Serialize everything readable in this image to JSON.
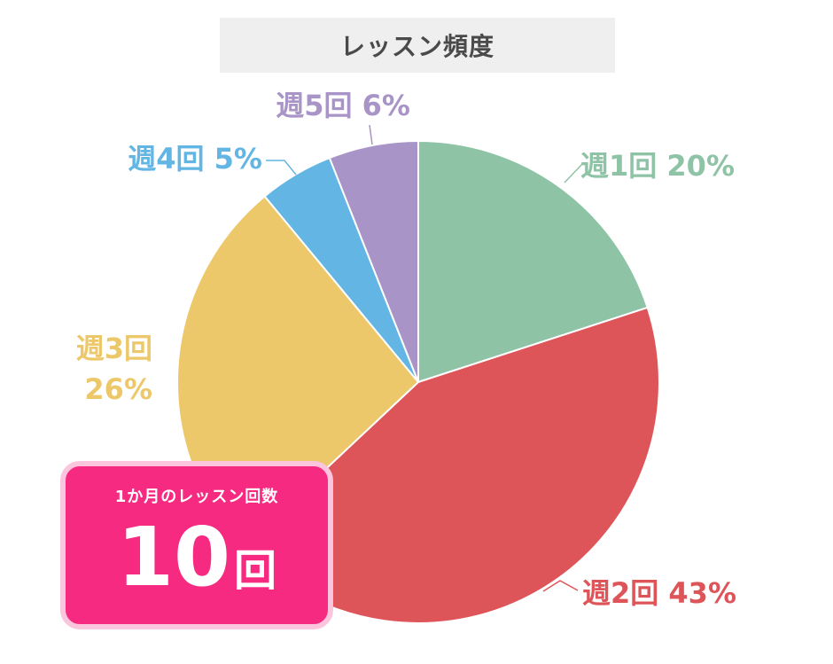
{
  "chart_data": {
    "type": "pie",
    "title": "レッスン頻度",
    "slices": [
      {
        "label": "週1回",
        "value": 20,
        "value_text": "20%",
        "color": "#8fc3a6"
      },
      {
        "label": "週2回",
        "value": 43,
        "value_text": "43%",
        "color": "#dd5559"
      },
      {
        "label": "週3回",
        "value": 26,
        "value_text": "26%",
        "color": "#edc86a"
      },
      {
        "label": "週4回",
        "value": 5,
        "value_text": "5%",
        "color": "#63b5e4"
      },
      {
        "label": "週5回",
        "value": 6,
        "value_text": "6%",
        "color": "#a894c6"
      }
    ]
  },
  "summary": {
    "label": "1か月のレッスン回数",
    "value": "10",
    "unit": "回",
    "background_color": "#f72a82"
  }
}
